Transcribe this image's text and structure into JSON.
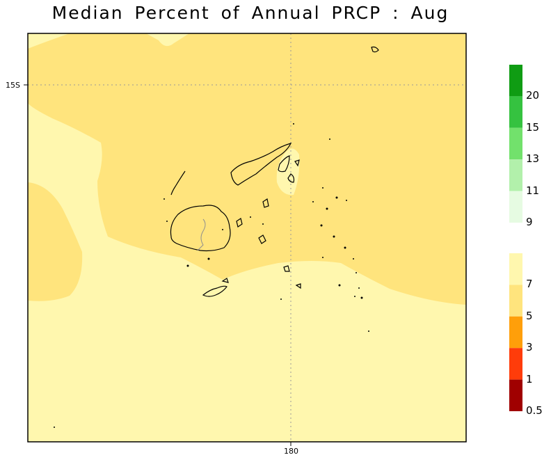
{
  "title": "Median Percent of Annual PRCP :    Aug",
  "axes": {
    "lat_tick": "15S",
    "lon_tick": "180"
  },
  "colors": {
    "background_light": "#fff7ae",
    "background_mid": "#ffe47d",
    "coastline": "#000000",
    "grid": "#999999"
  },
  "legend": {
    "upper": [
      {
        "color": "#0f9c13",
        "label": "20"
      },
      {
        "color": "#35c240",
        "label": "15"
      },
      {
        "color": "#72e16c",
        "label": "13"
      },
      {
        "color": "#b2f0ab",
        "label": "11"
      },
      {
        "color": "#e6fbe2",
        "label": "9"
      }
    ],
    "lower": [
      {
        "color": "#fff7ae",
        "label": "7"
      },
      {
        "color": "#ffe47d",
        "label": "5"
      },
      {
        "color": "#ff9f0a",
        "label": "3"
      },
      {
        "color": "#ff3c0a",
        "label": "1"
      },
      {
        "color": "#a00000",
        "label": "0.5"
      }
    ]
  }
}
